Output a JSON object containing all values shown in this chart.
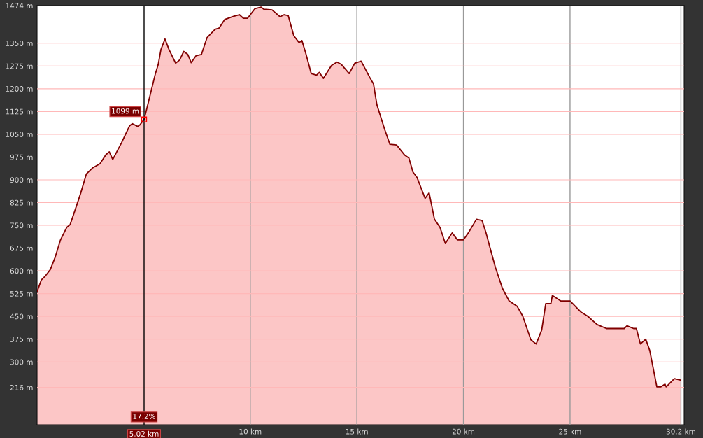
{
  "chart_data": {
    "type": "area",
    "x": [
      0,
      0.2,
      0.4,
      0.62,
      0.85,
      1.1,
      1.39,
      1.55,
      1.8,
      2.05,
      2.31,
      2.6,
      2.95,
      3.23,
      3.39,
      3.55,
      3.96,
      4.34,
      4.47,
      4.72,
      4.82,
      5.02,
      5.23,
      5.55,
      5.68,
      5.81,
      6.0,
      6.19,
      6.5,
      6.69,
      6.88,
      7.07,
      7.23,
      7.46,
      7.71,
      7.97,
      8.35,
      8.54,
      8.8,
      9.24,
      9.49,
      9.68,
      9.87,
      10.22,
      10.51,
      10.64,
      11.02,
      11.4,
      11.59,
      11.78,
      12.04,
      12.29,
      12.42,
      12.6,
      12.86,
      13.11,
      13.24,
      13.43,
      13.81,
      14.07,
      14.26,
      14.64,
      14.9,
      15.2,
      15.6,
      15.78,
      15.94,
      16.3,
      16.55,
      16.86,
      17.25,
      17.44,
      17.63,
      17.82,
      18.2,
      18.39,
      18.64,
      18.9,
      19.15,
      19.47,
      19.72,
      20.0,
      20.23,
      20.61,
      20.87,
      21.06,
      21.25,
      21.5,
      21.83,
      22.14,
      22.52,
      22.78,
      23.16,
      23.41,
      23.67,
      23.86,
      24.1,
      24.17,
      24.56,
      25.0,
      25.25,
      25.5,
      25.82,
      26.27,
      26.71,
      27.54,
      27.67,
      27.98,
      28.11,
      28.3,
      28.55,
      28.74,
      29.07,
      29.26,
      29.45,
      29.51,
      29.89,
      30.18
    ],
    "series": [
      {
        "color": "#800000",
        "values": [
          531,
          570,
          584,
          604,
          645,
          702,
          743,
          752,
          804,
          857,
          919,
          939,
          953,
          983,
          992,
          967,
          1022,
          1078,
          1085,
          1076,
          1081,
          1099,
          1158,
          1250,
          1279,
          1329,
          1364,
          1329,
          1284,
          1295,
          1323,
          1313,
          1286,
          1309,
          1313,
          1368,
          1396,
          1400,
          1428,
          1439,
          1444,
          1432,
          1432,
          1464,
          1469,
          1462,
          1460,
          1437,
          1444,
          1441,
          1375,
          1352,
          1359,
          1318,
          1250,
          1245,
          1254,
          1234,
          1277,
          1288,
          1281,
          1250,
          1284,
          1291,
          1238,
          1216,
          1147,
          1067,
          1017,
          1015,
          981,
          972,
          926,
          908,
          839,
          857,
          770,
          743,
          690,
          725,
          702,
          702,
          725,
          770,
          766,
          725,
          675,
          611,
          542,
          501,
          483,
          451,
          373,
          359,
          405,
          492,
          492,
          519,
          501,
          501,
          483,
          465,
          451,
          423,
          410,
          410,
          419,
          410,
          410,
          359,
          375,
          337,
          218,
          218,
          227,
          218,
          245,
          240
        ]
      }
    ],
    "xlim": [
      0,
      30.35
    ],
    "ylim": [
      93,
      1474
    ],
    "xticks": [
      {
        "value": 10,
        "label": "10 km"
      },
      {
        "value": 15,
        "label": "15 km"
      },
      {
        "value": 20,
        "label": "20 km"
      },
      {
        "value": 25,
        "label": "25 km"
      },
      {
        "value": 30.2,
        "label": "30.2 km"
      }
    ],
    "yticks": [
      {
        "value": 216,
        "label": "216 m"
      },
      {
        "value": 300,
        "label": "300 m"
      },
      {
        "value": 375,
        "label": "375 m"
      },
      {
        "value": 450,
        "label": "450 m"
      },
      {
        "value": 525,
        "label": "525 m"
      },
      {
        "value": 600,
        "label": "600 m"
      },
      {
        "value": 675,
        "label": "675 m"
      },
      {
        "value": 750,
        "label": "750 m"
      },
      {
        "value": 825,
        "label": "825 m"
      },
      {
        "value": 900,
        "label": "900 m"
      },
      {
        "value": 975,
        "label": "975 m"
      },
      {
        "value": 1050,
        "label": "1050 m"
      },
      {
        "value": 1125,
        "label": "1125 m"
      },
      {
        "value": 1200,
        "label": "1200 m"
      },
      {
        "value": 1275,
        "label": "1275 m"
      },
      {
        "value": 1350,
        "label": "1350 m"
      },
      {
        "value": 1474,
        "label": "1474 m"
      }
    ],
    "grid": true,
    "ref_lines": [
      {
        "axis": "x",
        "value": 5.02,
        "label": "5.02 km",
        "color": "#000000"
      }
    ],
    "annotations": [
      {
        "text": "1099 m",
        "x": 5.02,
        "y": 1099
      },
      "17.2%"
    ]
  }
}
